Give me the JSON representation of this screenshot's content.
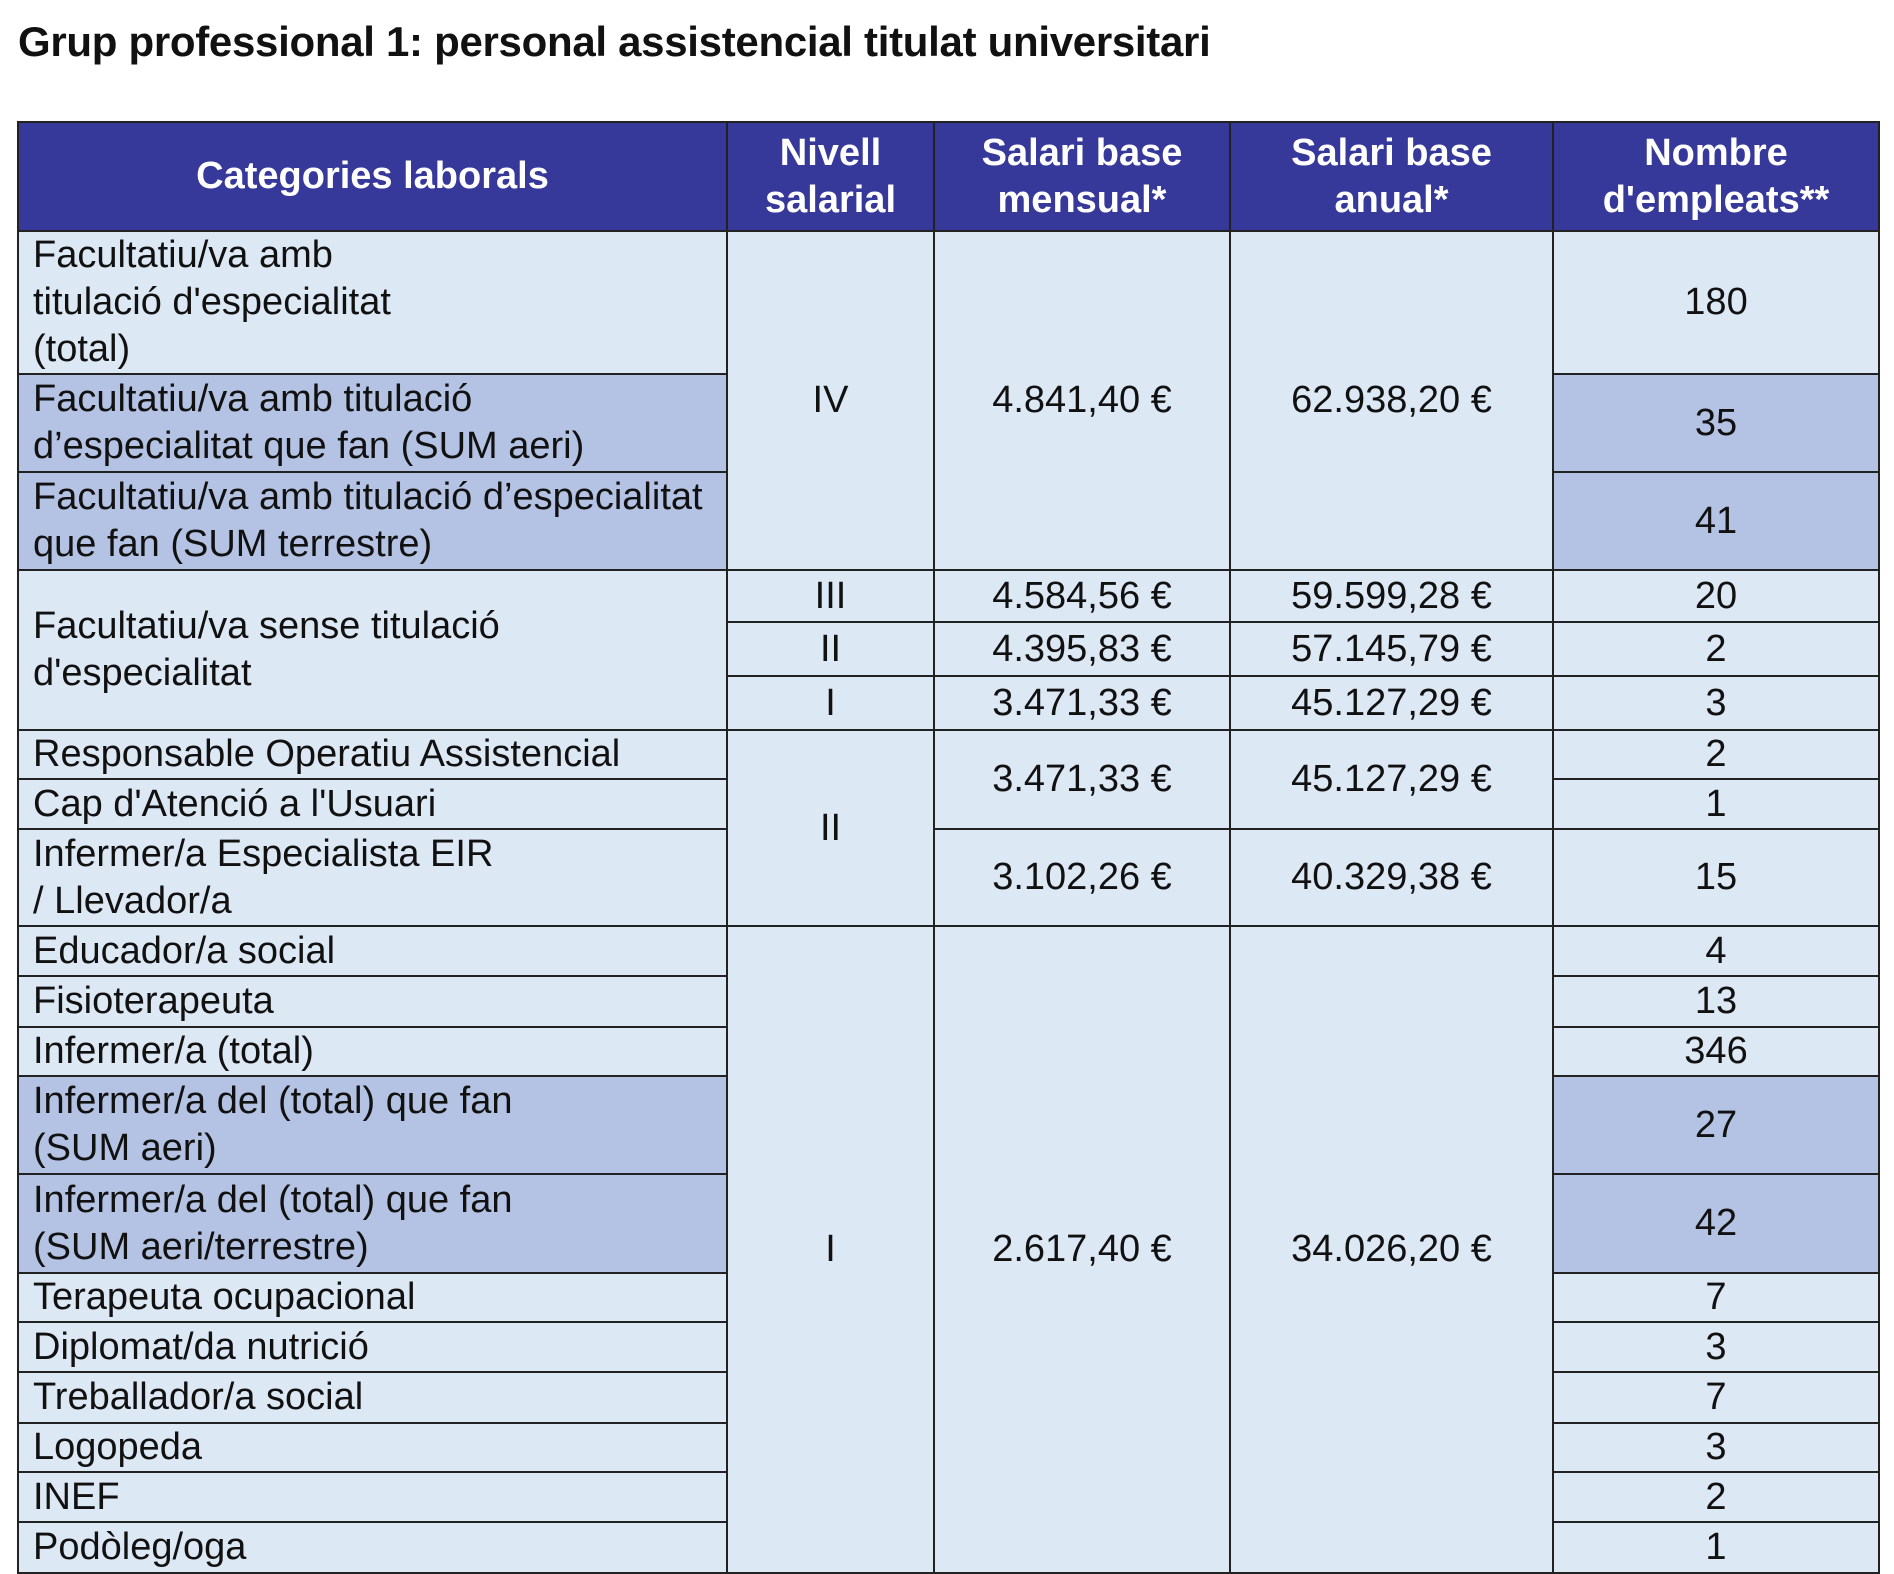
{
  "title": "Grup professional 1: personal assistencial titulat universitari",
  "headers": [
    "Categories laborals",
    "Nivell salarial",
    "Salari base mensual*",
    "Salari base anual*",
    "Nombre d'empleats**"
  ],
  "colors": {
    "header": "#36399a",
    "row": "#dde8f5",
    "highlight": "#b4c3e3"
  },
  "rows": [
    {
      "cat": "Facultatiu/va amb titulació d'especialitat (total)",
      "count": "180"
    },
    {
      "cat": "Facultatiu/va amb titulació d’especialitat que fan (SUM aeri)",
      "count": "35"
    },
    {
      "cat": "Facultatiu/va amb titulació d’especialitat que fan (SUM terrestre)",
      "count": "41"
    },
    {
      "cat": "Facultatiu/va sense titulació d'especialitat",
      "count": "20"
    },
    {
      "count": "2"
    },
    {
      "count": "3"
    },
    {
      "cat": "Responsable Operatiu Assistencial",
      "count": "2"
    },
    {
      "cat": "Cap d'Atenció a l'Usuari",
      "count": "1"
    },
    {
      "cat": "Infermer/a Especialista EIR / Llevador/a",
      "count": "15"
    },
    {
      "cat": "Educador/a social",
      "count": "4"
    },
    {
      "cat": "Fisioterapeuta",
      "count": "13"
    },
    {
      "cat": "Infermer/a (total)",
      "count": "346"
    },
    {
      "cat": "Infermer/a del (total) que fan (SUM aeri)",
      "count": "27"
    },
    {
      "cat": "Infermer/a del (total) que fan (SUM aeri/terrestre)",
      "count": "42"
    },
    {
      "cat": "Terapeuta ocupacional",
      "count": "7"
    },
    {
      "cat": "Diplomat/da nutrició",
      "count": "3"
    },
    {
      "cat": "Treballador/a social",
      "count": "7"
    },
    {
      "cat": "Logopeda",
      "count": "3"
    },
    {
      "cat": "INEF",
      "count": "2"
    },
    {
      "cat": "Podòleg/oga",
      "count": "1"
    }
  ],
  "groups": {
    "g1": {
      "level": "IV",
      "monthly": "4.841,40 €",
      "annual": "62.938,20 €"
    },
    "g2a": {
      "level": "III",
      "monthly": "4.584,56 €",
      "annual": "59.599,28 €"
    },
    "g2b": {
      "level": "II",
      "monthly": "4.395,83 €",
      "annual": "57.145,79 €"
    },
    "g2c": {
      "level": "I",
      "monthly": "3.471,33 €",
      "annual": "45.127,29 €"
    },
    "g3": {
      "level": "II",
      "monthly": "3.471,33 €",
      "annual": "45.127,29 €"
    },
    "g3b": {
      "monthly": "3.102,26 €",
      "annual": "40.329,38 €"
    },
    "g4": {
      "level": "I",
      "monthly": "2.617,40 €",
      "annual": "34.026,20 €"
    }
  }
}
